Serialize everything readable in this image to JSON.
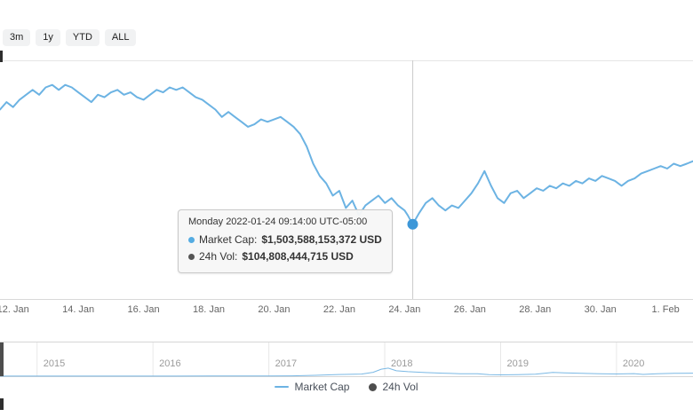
{
  "header": {
    "range_buttons": [
      "3m",
      "1y",
      "YTD",
      "ALL"
    ]
  },
  "tooltip": {
    "title": "Monday 2022-01-24 09:14:00 UTC-05:00",
    "rows": [
      {
        "series": "Market Cap",
        "label": "Market Cap:",
        "value": "$1,503,588,153,372 USD"
      },
      {
        "series": "24h Vol",
        "label": "24h Vol:",
        "value": "$104,808,444,715 USD"
      }
    ]
  },
  "x_axis": {
    "labels": [
      "12. Jan",
      "14. Jan",
      "16. Jan",
      "18. Jan",
      "20. Jan",
      "22. Jan",
      "24. Jan",
      "26. Jan",
      "28. Jan",
      "30. Jan",
      "1. Feb"
    ]
  },
  "navigator": {
    "year_labels": [
      "2015",
      "2016",
      "2017",
      "2018",
      "2019",
      "2020"
    ]
  },
  "legend": {
    "items": [
      {
        "label": "Market Cap"
      },
      {
        "label": "24h Vol"
      }
    ]
  },
  "colors": {
    "line": "#6cb3e3",
    "marker": "#3d97d8",
    "grid": "#e6e6e6",
    "axis_line": "#d9d9d9",
    "crosshair": "#cccccc",
    "nav_line": "#7ab8e4",
    "nav_grid": "#e8e8e8",
    "nav_border": "#d6d6d6",
    "handle": "#4d4d4d",
    "tooltip_dot_market_cap": "#55ace2",
    "tooltip_dot_vol": "#555555"
  },
  "chart_data": [
    {
      "type": "line",
      "series_name": "Market Cap",
      "title": "Total cryptocurrency market cap (zoomed range, Jan 2022)",
      "x_unit": "day index in Jan 2022 (32 = Feb 1)",
      "x": [
        11.6,
        11.8,
        12,
        12.2,
        12.4,
        12.6,
        12.8,
        13,
        13.2,
        13.4,
        13.6,
        13.8,
        14,
        14.2,
        14.4,
        14.6,
        14.8,
        15,
        15.2,
        15.4,
        15.6,
        15.8,
        16,
        16.2,
        16.4,
        16.6,
        16.8,
        17,
        17.2,
        17.4,
        17.6,
        17.8,
        18,
        18.2,
        18.4,
        18.6,
        18.8,
        19,
        19.2,
        19.4,
        19.6,
        19.8,
        20,
        20.2,
        20.4,
        20.6,
        20.8,
        21,
        21.2,
        21.4,
        21.6,
        21.8,
        22,
        22.2,
        22.4,
        22.6,
        22.8,
        23,
        23.2,
        23.4,
        23.6,
        23.8,
        24,
        24.1,
        24.25,
        24.45,
        24.65,
        24.85,
        25.05,
        25.25,
        25.45,
        25.65,
        25.85,
        26.05,
        26.25,
        26.45,
        26.65,
        26.85,
        27.05,
        27.25,
        27.45,
        27.65,
        27.85,
        28.05,
        28.25,
        28.45,
        28.65,
        28.85,
        29.05,
        29.25,
        29.45,
        29.65,
        29.85,
        30.05,
        30.25,
        30.45,
        30.65,
        30.85,
        31.05,
        31.25,
        31.45,
        31.65,
        31.85,
        32.05,
        32.25,
        32.45,
        32.65,
        32.84
      ],
      "values_trillion_usd": [
        1.97,
        2.0,
        1.98,
        2.01,
        2.03,
        2.05,
        2.03,
        2.06,
        2.07,
        2.05,
        2.07,
        2.06,
        2.04,
        2.02,
        2.0,
        2.03,
        2.02,
        2.04,
        2.05,
        2.03,
        2.04,
        2.02,
        2.01,
        2.03,
        2.05,
        2.04,
        2.06,
        2.05,
        2.06,
        2.04,
        2.02,
        2.01,
        1.99,
        1.97,
        1.94,
        1.96,
        1.94,
        1.92,
        1.9,
        1.91,
        1.93,
        1.92,
        1.93,
        1.94,
        1.92,
        1.9,
        1.87,
        1.82,
        1.75,
        1.7,
        1.67,
        1.62,
        1.64,
        1.57,
        1.6,
        1.54,
        1.58,
        1.6,
        1.62,
        1.59,
        1.61,
        1.58,
        1.56,
        1.54,
        1.5036,
        1.55,
        1.59,
        1.61,
        1.58,
        1.56,
        1.58,
        1.57,
        1.6,
        1.63,
        1.67,
        1.72,
        1.66,
        1.61,
        1.59,
        1.63,
        1.64,
        1.61,
        1.63,
        1.65,
        1.64,
        1.66,
        1.65,
        1.67,
        1.66,
        1.68,
        1.67,
        1.69,
        1.68,
        1.7,
        1.69,
        1.68,
        1.66,
        1.68,
        1.69,
        1.71,
        1.72,
        1.73,
        1.74,
        1.73,
        1.75,
        1.74,
        1.75,
        1.76
      ],
      "xlim": [
        11.6,
        32.84
      ],
      "ylim": [
        1.2,
        2.17
      ],
      "tick_days": [
        12,
        14,
        16,
        18,
        20,
        22,
        24,
        26,
        28,
        30,
        32
      ],
      "grid": "top horizontal line only, vertical crosshair at hovered point",
      "legend_position": "bottom",
      "highlight_point": {
        "x": 24.25,
        "value": 1.5036,
        "timestamp": "2022-01-24 09:14:00 UTC-05:00",
        "market_cap_usd": "1,503,588,153,372",
        "vol_24h_usd": "104,808,444,715"
      }
    },
    {
      "type": "line",
      "series_name": "Market Cap (navigator, full history)",
      "x_unit": "calendar year (fractional)",
      "x": [
        2014.68,
        2015.0,
        2015.3,
        2015.6,
        2015.9,
        2016.2,
        2016.5,
        2016.8,
        2017.0,
        2017.2,
        2017.4,
        2017.6,
        2017.8,
        2017.9,
        2017.97,
        2018.03,
        2018.1,
        2018.2,
        2018.35,
        2018.5,
        2018.65,
        2018.8,
        2018.9,
        2019.0,
        2019.15,
        2019.3,
        2019.45,
        2019.55,
        2019.7,
        2019.85,
        2020.0,
        2020.15,
        2020.23,
        2020.35,
        2020.5,
        2020.66
      ],
      "values_trillion_usd": [
        0.006,
        0.005,
        0.004,
        0.005,
        0.007,
        0.01,
        0.013,
        0.016,
        0.019,
        0.035,
        0.08,
        0.15,
        0.19,
        0.35,
        0.62,
        0.72,
        0.48,
        0.4,
        0.32,
        0.27,
        0.22,
        0.21,
        0.14,
        0.12,
        0.14,
        0.18,
        0.33,
        0.29,
        0.26,
        0.22,
        0.2,
        0.23,
        0.16,
        0.21,
        0.25,
        0.27
      ],
      "xlim": [
        2014.68,
        2020.66
      ],
      "ylim": [
        0,
        3.0
      ],
      "year_ticks": [
        2015,
        2016,
        2017,
        2018,
        2019,
        2020
      ]
    }
  ]
}
